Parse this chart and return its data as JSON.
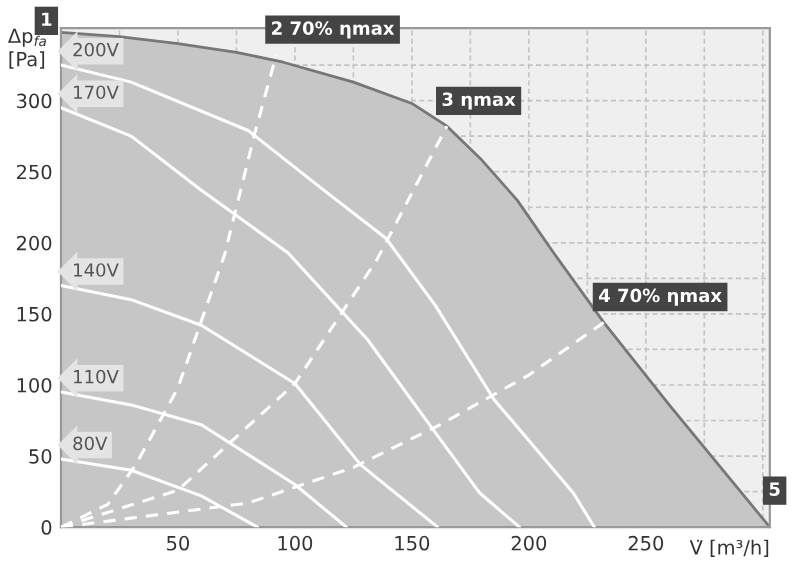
{
  "chart_data": {
    "type": "line",
    "ylabel": "Δp$_{fa}$\n[Pa]",
    "xlabel": "V̇ [m³/h]",
    "xlim": [
      0,
      303
    ],
    "ylim": [
      0,
      351
    ],
    "xticks": [
      {
        "value": 25,
        "label": null
      },
      50,
      {
        "value": 75,
        "label": null
      },
      100,
      {
        "value": 125,
        "label": null
      },
      150,
      {
        "value": 175,
        "label": null
      },
      200,
      {
        "value": 225,
        "label": null
      },
      250,
      {
        "value": 275,
        "label": null
      },
      {
        "value": 300,
        "label": null
      }
    ],
    "yticks": [
      0,
      {
        "value": 25,
        "label": null
      },
      50,
      {
        "value": 75,
        "label": null
      },
      100,
      {
        "value": 125,
        "label": null
      },
      150,
      {
        "value": 175,
        "label": null
      },
      200,
      {
        "value": 225,
        "label": null
      },
      250,
      {
        "value": 275,
        "label": null
      },
      300,
      {
        "value": 325,
        "label": null
      }
    ],
    "grid": true,
    "series": [
      {
        "type": "area",
        "color": "#c6c6c6",
        "x": [
          0,
          25,
          50,
          75,
          95,
          125,
          150,
          165,
          180,
          195,
          211,
          232,
          260,
          303
        ],
        "values": [
          348,
          345,
          340,
          334,
          327,
          313,
          298,
          282,
          258,
          230,
          192,
          144,
          86,
          0
        ]
      },
      {
        "name": "200V",
        "color": "#ffffff",
        "x": [
          0,
          30,
          80,
          110,
          139,
          160,
          185,
          219,
          228
        ],
        "values": [
          325,
          313,
          279,
          240,
          203,
          156,
          90,
          24,
          0
        ]
      },
      {
        "name": "170V",
        "color": "#ffffff",
        "x": [
          0,
          30,
          60,
          97,
          131,
          154,
          179,
          196
        ],
        "values": [
          295,
          275,
          237,
          193,
          132,
          80,
          24,
          0
        ]
      },
      {
        "name": "140V",
        "color": "#ffffff",
        "x": [
          0,
          30,
          60,
          100,
          128,
          161
        ],
        "values": [
          170,
          160,
          142,
          101,
          44,
          0
        ]
      },
      {
        "name": "110V",
        "color": "#ffffff",
        "x": [
          0,
          30,
          60,
          100,
          122
        ],
        "values": [
          95,
          86,
          72,
          30,
          0
        ]
      },
      {
        "name": "80V",
        "color": "#ffffff",
        "x": [
          0,
          30,
          60,
          84
        ],
        "values": [
          48,
          40,
          22,
          0
        ]
      },
      {
        "color": "#ffffff",
        "line_style": "dashed",
        "x": [
          0,
          20,
          32,
          50,
          70,
          83,
          92
        ],
        "values": [
          0,
          16,
          44,
          98,
          192,
          278,
          332
        ]
      },
      {
        "color": "#ffffff",
        "line_style": "dashed",
        "x": [
          0,
          50,
          100,
          135,
          165
        ],
        "values": [
          0,
          26,
          101,
          188,
          282
        ]
      },
      {
        "color": "#ffffff",
        "line_style": "dashed",
        "x": [
          0,
          80,
          125,
          162,
          200,
          232
        ],
        "values": [
          0,
          17,
          42,
          72,
          107,
          144
        ]
      }
    ],
    "annotations": [
      {
        "text": "1",
        "x": 0,
        "y": 348
      },
      {
        "text": "2 70% ηmax",
        "x": 92,
        "y": 332
      },
      {
        "text": "3 ηmax",
        "x": 165,
        "y": 282
      },
      {
        "text": "4 70% ηmax",
        "x": 232,
        "y": 144
      },
      {
        "text": "5",
        "x": 303,
        "y": 0
      }
    ]
  }
}
